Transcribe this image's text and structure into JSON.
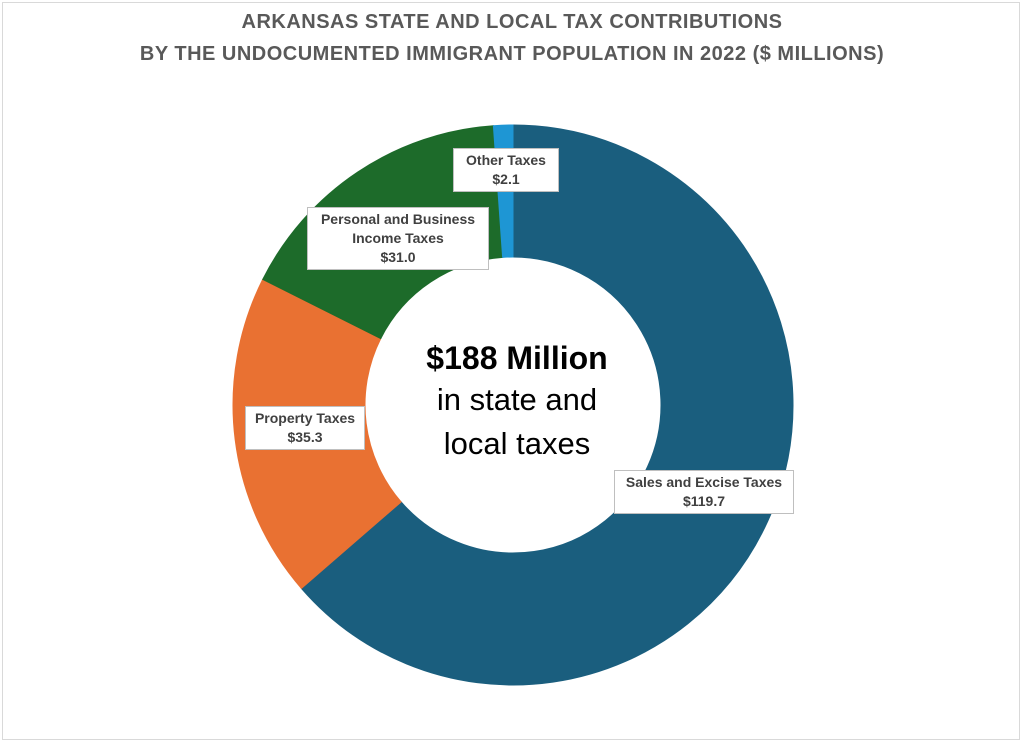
{
  "title_line1": "ARKANSAS STATE AND LOCAL TAX CONTRIBUTIONS",
  "title_line2": "BY THE UNDOCUMENTED IMMIGRANT POPULATION IN 2022 ($ MILLIONS)",
  "center": {
    "headline": "$188 Million",
    "line2": "in state and",
    "line3": "local taxes"
  },
  "chart_data": {
    "type": "pie",
    "title": "ARKANSAS STATE AND LOCAL TAX CONTRIBUTIONS BY THE UNDOCUMENTED IMMIGRANT POPULATION IN 2022 ($ MILLIONS)",
    "donut": true,
    "slices": [
      {
        "name": "Sales and Excise Taxes",
        "value": 119.7,
        "value_label": "$119.7",
        "color": "#1a5e7e"
      },
      {
        "name": "Property Taxes",
        "value": 35.3,
        "value_label": "$35.3",
        "color": "#e97132"
      },
      {
        "name": "Personal and Business Income Taxes",
        "value": 31.0,
        "value_label": "$31.0",
        "color": "#1d6b2a"
      },
      {
        "name": "Other Taxes",
        "value": 2.1,
        "value_label": "$2.1",
        "color": "#1e96d4"
      }
    ],
    "labels": {
      "sales": {
        "line1": "Sales and Excise Taxes",
        "line2": "$119.7"
      },
      "property": {
        "line1": "Property Taxes",
        "line2": "$35.3"
      },
      "income": {
        "line1": "Personal and Business",
        "line2": "Income Taxes",
        "line3": "$31.0"
      },
      "other": {
        "line1": "Other Taxes",
        "line2": "$2.1"
      }
    }
  }
}
